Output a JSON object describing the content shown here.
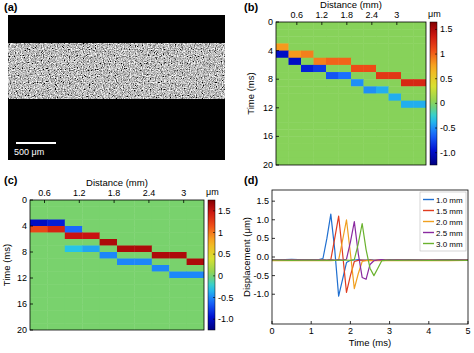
{
  "chart_data": [
    {
      "type": "image",
      "title": "(a)",
      "annotations": [
        "500 μm"
      ]
    },
    {
      "type": "heatmap",
      "title": "(b)",
      "x_label": "Distance (mm)",
      "y_label": "Time (ms)",
      "xlim": [
        0.1,
        3.7
      ],
      "xticks": [
        0.6,
        1.2,
        1.8,
        2.4,
        3
      ],
      "ylim": [
        20,
        0
      ],
      "yticks": [
        0,
        4,
        8,
        12,
        16,
        20
      ],
      "x": [
        0.25,
        0.55,
        0.85,
        1.15,
        1.45,
        1.75,
        2.05,
        2.35,
        2.65,
        2.95,
        3.25,
        3.55
      ],
      "y": [
        0.5,
        1.5,
        2.5,
        3.5,
        4.5,
        5.5,
        6.5,
        7.5,
        8.5,
        9.5,
        10.5,
        11.5,
        12.5,
        13.5,
        14.5,
        15.5,
        16.5,
        17.5,
        18.5,
        19.5
      ],
      "values": [
        [
          0,
          0,
          0,
          0,
          0,
          0,
          0,
          0,
          0,
          0,
          0,
          0
        ],
        [
          0,
          0,
          0,
          0,
          0,
          0,
          0,
          0,
          0,
          0,
          0,
          0
        ],
        [
          0,
          0,
          0,
          0,
          0,
          0,
          0,
          0,
          0,
          0,
          0,
          0
        ],
        [
          0.8,
          0,
          0,
          0,
          0,
          0,
          0,
          0,
          0,
          0,
          0,
          0
        ],
        [
          -1.0,
          0.8,
          0.9,
          0,
          0,
          0,
          0,
          0,
          0,
          0,
          0,
          0
        ],
        [
          0,
          -1.0,
          0,
          0.9,
          1.0,
          1.0,
          0,
          0,
          0,
          0,
          0,
          0
        ],
        [
          0,
          0,
          -0.9,
          -0.8,
          0,
          0,
          1.1,
          1.1,
          0,
          0,
          0,
          0
        ],
        [
          0,
          0,
          0,
          0,
          -0.7,
          -0.6,
          0,
          0,
          1.2,
          1.2,
          0,
          0
        ],
        [
          0,
          0,
          0,
          0,
          0,
          0,
          -0.5,
          0,
          0,
          0,
          1.3,
          1.3
        ],
        [
          0,
          0,
          0,
          0,
          0,
          0,
          0,
          -0.5,
          -0.4,
          0,
          0,
          0
        ],
        [
          0,
          0,
          0,
          0,
          0,
          0,
          0,
          0,
          0,
          -0.4,
          0,
          0
        ],
        [
          0,
          0,
          0,
          0,
          0,
          0,
          0,
          0,
          0,
          0,
          -0.4,
          -0.4
        ],
        [
          0,
          0,
          0,
          0,
          0,
          0,
          0,
          0,
          0,
          0,
          0,
          0
        ],
        [
          0,
          0,
          0,
          0,
          0,
          0,
          0,
          0,
          0,
          0,
          0,
          0
        ],
        [
          0,
          0,
          0,
          0,
          0,
          0,
          0,
          0,
          0,
          0,
          0,
          0
        ],
        [
          0,
          0,
          0,
          0,
          0,
          0,
          0,
          0,
          0,
          0,
          0,
          0
        ],
        [
          0,
          0,
          0,
          0,
          0,
          0,
          0,
          0,
          0,
          0,
          0,
          0
        ],
        [
          0,
          0,
          0,
          0,
          0,
          0,
          0,
          0,
          0,
          0,
          0,
          0
        ],
        [
          0,
          0,
          0,
          0,
          0,
          0,
          0,
          0,
          0,
          0,
          0,
          0
        ],
        [
          0,
          0,
          0,
          0,
          0,
          0,
          0,
          0,
          0,
          0,
          0,
          0
        ]
      ],
      "colorbar": {
        "label": "μm",
        "range": [
          -1.25,
          1.65
        ],
        "ticks": [
          1.5,
          1,
          0.5,
          0,
          -0.5,
          {
            "value": -1,
            "label": "-1.0"
          }
        ]
      }
    },
    {
      "type": "heatmap",
      "title": "(c)",
      "x_label": "Distance (mm)",
      "y_label": "Time (ms)",
      "xlim": [
        0.35,
        3.35
      ],
      "xticks": [
        0.6,
        1.2,
        1.8,
        2.4,
        3
      ],
      "ylim": [
        20,
        0
      ],
      "yticks": [
        0,
        4,
        8,
        12,
        16,
        20
      ],
      "x": [
        0.5,
        0.8,
        1.1,
        1.4,
        1.7,
        2.0,
        2.3,
        2.6,
        2.9,
        3.2
      ],
      "y": [
        0.5,
        1.5,
        2.5,
        3.5,
        4.5,
        5.5,
        6.5,
        7.5,
        8.5,
        9.5,
        10.5,
        11.5,
        12.5,
        13.5,
        14.5,
        15.5,
        16.5,
        17.5,
        18.5,
        19.5
      ],
      "values": [
        [
          0,
          0,
          0,
          0,
          0,
          0,
          0,
          0,
          0,
          0
        ],
        [
          0,
          0,
          0,
          0,
          0,
          0,
          0,
          0,
          0,
          0
        ],
        [
          0,
          0,
          0,
          0,
          0,
          0,
          0,
          0,
          0,
          0
        ],
        [
          -1.0,
          -0.9,
          0,
          0,
          0,
          0,
          0,
          0,
          0,
          0
        ],
        [
          1.2,
          1.4,
          -0.6,
          0,
          0,
          0,
          0,
          0,
          0,
          0
        ],
        [
          0,
          0,
          1.5,
          1.5,
          0,
          0,
          0,
          0,
          0,
          0
        ],
        [
          0,
          0,
          0,
          0,
          1.6,
          0,
          0,
          0,
          0,
          0
        ],
        [
          0,
          0,
          -0.3,
          -0.4,
          0,
          1.6,
          1.6,
          0,
          0,
          0
        ],
        [
          0,
          0,
          0,
          0,
          -0.5,
          0,
          0,
          1.6,
          1.6,
          0
        ],
        [
          0,
          0,
          0,
          0,
          0,
          -0.5,
          -0.5,
          0,
          0,
          1.6
        ],
        [
          0,
          0,
          0,
          0,
          0,
          0,
          0,
          -0.5,
          0,
          0
        ],
        [
          0,
          0,
          0,
          0,
          0,
          0,
          0,
          0,
          -0.5,
          -0.5
        ],
        [
          0,
          0,
          0,
          0,
          0,
          0,
          0,
          0,
          0,
          0
        ],
        [
          0,
          0,
          0,
          0,
          0,
          0,
          0,
          0,
          0,
          0
        ],
        [
          0,
          0,
          0,
          0,
          0,
          0,
          0,
          0,
          0,
          0
        ],
        [
          0,
          0,
          0,
          0,
          0,
          0,
          0,
          0,
          0,
          0
        ],
        [
          0,
          0,
          0,
          0,
          0,
          0,
          0,
          0,
          0,
          0
        ],
        [
          0,
          0,
          0,
          0,
          0,
          0,
          0,
          0,
          0,
          0
        ],
        [
          0,
          0,
          0,
          0,
          0,
          0,
          0,
          0,
          0,
          0
        ],
        [
          0,
          0,
          0,
          0,
          0,
          0,
          0,
          0,
          0,
          0
        ]
      ],
      "colorbar": {
        "label": "μm",
        "range": [
          -1.25,
          1.75
        ],
        "ticks": [
          1.5,
          1,
          0.5,
          0,
          -0.5,
          {
            "value": -1,
            "label": "-1.0"
          }
        ]
      }
    },
    {
      "type": "line",
      "title": "(d)",
      "x_label": "Time (ms)",
      "y_label": "Displacement (μm)",
      "xlim": [
        0,
        5
      ],
      "xticks": [
        0,
        1,
        2,
        3,
        4,
        5
      ],
      "ylim": [
        -1.8,
        1.8
      ],
      "yticks": [
        {
          "value": -1,
          "label": "-1.0"
        },
        -0.5,
        {
          "value": 0,
          "label": "0.0"
        },
        0.5,
        {
          "value": 1,
          "label": "1.0"
        },
        1.5
      ],
      "legend": "upper right",
      "x": [
        0,
        0.5,
        1.0,
        1.2,
        1.3,
        1.4,
        1.5,
        1.6,
        1.7,
        1.8,
        1.9,
        2.0,
        2.1,
        2.2,
        2.3,
        2.4,
        2.5,
        2.6,
        2.7,
        2.8,
        2.9,
        3.0,
        3.2,
        3.5,
        4.0,
        4.5,
        5.0
      ],
      "series": [
        {
          "name": "1.0 mm",
          "color": "#1f6fd0",
          "values": [
            -0.08,
            -0.06,
            -0.08,
            -0.07,
            -0.04,
            0.5,
            1.15,
            0.2,
            -1.05,
            -0.6,
            -0.15,
            -0.09,
            -0.08,
            -0.07,
            -0.08,
            -0.08,
            -0.07,
            -0.08,
            -0.08,
            -0.07,
            -0.08,
            -0.08,
            -0.07,
            -0.08,
            -0.08,
            -0.07,
            -0.08
          ]
        },
        {
          "name": "1.5 mm",
          "color": "#e03c1f",
          "values": [
            -0.09,
            -0.08,
            -0.09,
            -0.08,
            -0.08,
            -0.09,
            -0.07,
            0.5,
            1.1,
            0.1,
            -0.95,
            -0.5,
            -0.12,
            -0.09,
            -0.08,
            -0.09,
            -0.08,
            -0.09,
            -0.08,
            -0.09,
            -0.08,
            -0.09,
            -0.08,
            -0.09,
            -0.08,
            -0.09,
            -0.08
          ]
        },
        {
          "name": "2.0 mm",
          "color": "#f0a020",
          "values": [
            -0.1,
            -0.09,
            -0.1,
            -0.09,
            -0.1,
            -0.09,
            -0.1,
            -0.09,
            -0.08,
            0.45,
            1.0,
            0.1,
            -0.85,
            -0.45,
            -0.12,
            -0.1,
            -0.09,
            -0.1,
            -0.09,
            -0.1,
            -0.09,
            -0.1,
            -0.09,
            -0.1,
            -0.09,
            -0.1,
            -0.09
          ]
        },
        {
          "name": "2.5 mm",
          "color": "#8a2aa0",
          "values": [
            -0.07,
            -0.08,
            -0.07,
            -0.08,
            -0.07,
            -0.08,
            -0.07,
            -0.08,
            -0.07,
            -0.08,
            -0.06,
            0.4,
            0.95,
            0.1,
            -0.55,
            -0.6,
            -0.2,
            -0.1,
            -0.08,
            -0.07,
            -0.08,
            -0.07,
            -0.08,
            -0.07,
            -0.08,
            -0.07,
            -0.08
          ]
        },
        {
          "name": "3.0 mm",
          "color": "#6ab22e",
          "values": [
            -0.08,
            -0.09,
            -0.08,
            -0.09,
            -0.08,
            -0.09,
            -0.08,
            -0.09,
            -0.08,
            -0.09,
            -0.08,
            -0.09,
            -0.07,
            0.35,
            0.9,
            0.2,
            -0.3,
            -0.5,
            -0.3,
            -0.1,
            -0.09,
            -0.08,
            -0.09,
            -0.08,
            -0.09,
            -0.08,
            -0.09
          ]
        }
      ]
    }
  ]
}
